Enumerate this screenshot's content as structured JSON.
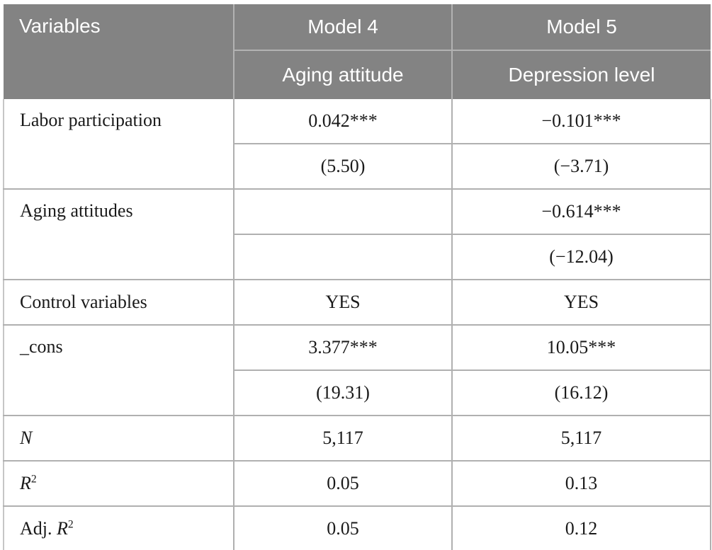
{
  "colors": {
    "header_bg": "#838383",
    "header_text": "#ffffff",
    "grid_line": "#b0b0b0",
    "body_text": "#1a1a1a",
    "body_bg": "#ffffff"
  },
  "table": {
    "header": {
      "variables_label": "Variables",
      "model4": {
        "title": "Model 4",
        "subtitle": "Aging attitude"
      },
      "model5": {
        "title": "Model 5",
        "subtitle": "Depression level"
      }
    },
    "rows": [
      {
        "label_prefix": "Labor participation",
        "model4": {
          "coef": "0.042***",
          "t": "(5.50)"
        },
        "model5": {
          "coef": "−0.101***",
          "t": "(−3.71)"
        }
      },
      {
        "label_prefix": "Aging attitudes",
        "model4": {
          "coef": "",
          "t": ""
        },
        "model5": {
          "coef": "−0.614***",
          "t": "(−12.04)"
        }
      },
      {
        "label_prefix": "Control variables",
        "model4": {
          "value": "YES"
        },
        "model5": {
          "value": "YES"
        }
      },
      {
        "label_prefix": "_cons",
        "model4": {
          "coef": "3.377***",
          "t": "(19.31)"
        },
        "model5": {
          "coef": "10.05***",
          "t": "(16.12)"
        }
      },
      {
        "label_italic": "N",
        "model4": {
          "value": "5,117"
        },
        "model5": {
          "value": "5,117"
        }
      },
      {
        "label_italic": "R",
        "label_sup": "2",
        "model4": {
          "value": "0.05"
        },
        "model5": {
          "value": "0.13"
        }
      },
      {
        "label_prefix": "Adj. ",
        "label_italic": "R",
        "label_sup": "2",
        "model4": {
          "value": "0.05"
        },
        "model5": {
          "value": "0.12"
        }
      }
    ]
  }
}
